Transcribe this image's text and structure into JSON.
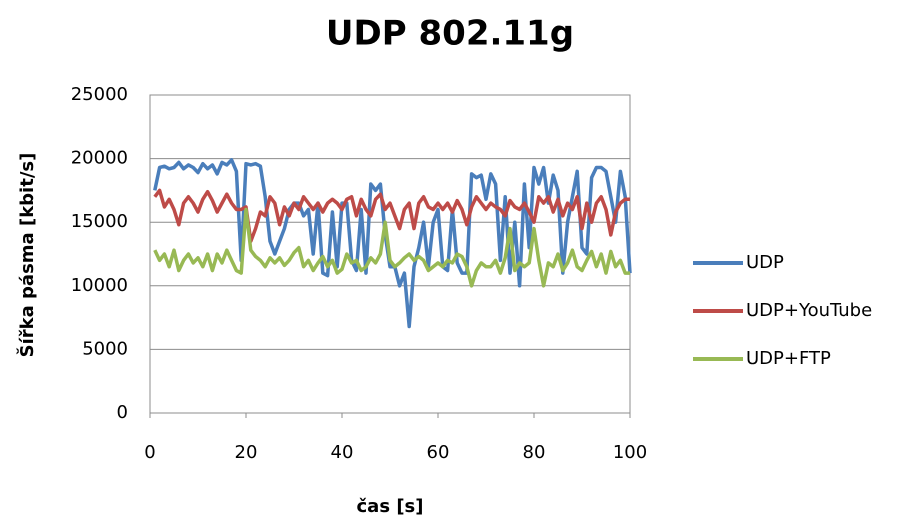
{
  "chart_data": {
    "type": "line",
    "title": "UDP 802.11g",
    "x_label": "čas [s]",
    "y_label": "Šířka pásma [kbit/s]",
    "x": [
      1,
      2,
      3,
      4,
      5,
      6,
      7,
      8,
      9,
      10,
      11,
      12,
      13,
      14,
      15,
      16,
      17,
      18,
      19,
      20,
      21,
      22,
      23,
      24,
      25,
      26,
      27,
      28,
      29,
      30,
      31,
      32,
      33,
      34,
      35,
      36,
      37,
      38,
      39,
      40,
      41,
      42,
      43,
      44,
      45,
      46,
      47,
      48,
      49,
      50,
      51,
      52,
      53,
      54,
      55,
      56,
      57,
      58,
      59,
      60,
      61,
      62,
      63,
      64,
      65,
      66,
      67,
      68,
      69,
      70,
      71,
      72,
      73,
      74,
      75,
      76,
      77,
      78,
      79,
      80,
      81,
      82,
      83,
      84,
      85,
      86,
      87,
      88,
      89,
      90,
      91,
      92,
      93,
      94,
      95,
      96,
      97,
      98,
      99,
      100
    ],
    "series": [
      {
        "name": "UDP",
        "color": "#4a7ebb",
        "values": [
          17500,
          19300,
          19400,
          19200,
          19300,
          19700,
          19200,
          19500,
          19300,
          18900,
          19600,
          19200,
          19500,
          18800,
          19700,
          19500,
          19900,
          19000,
          12000,
          19600,
          19500,
          19600,
          19400,
          17000,
          13500,
          12500,
          13500,
          14500,
          16000,
          16500,
          16500,
          15500,
          16000,
          12500,
          16500,
          11000,
          10800,
          15800,
          11500,
          16500,
          16500,
          12000,
          11200,
          16000,
          11000,
          18000,
          17500,
          18000,
          14000,
          11500,
          11500,
          10000,
          11000,
          6800,
          11500,
          13000,
          15000,
          11500,
          15000,
          16000,
          11500,
          11200,
          16000,
          11800,
          11000,
          11000,
          18800,
          18500,
          18700,
          16800,
          18800,
          18000,
          12000,
          17000,
          11000,
          15000,
          10000,
          18000,
          13000,
          19300,
          18000,
          19300,
          16500,
          18700,
          17500,
          11000,
          15000,
          17000,
          19000,
          13000,
          12500,
          18500,
          19300,
          19300,
          19000,
          17000,
          15000,
          19000,
          17000,
          11000
        ]
      },
      {
        "name": "UDP+YouTube",
        "color": "#be4b48",
        "values": [
          17000,
          17500,
          16200,
          16800,
          16000,
          14800,
          16500,
          17000,
          16500,
          15800,
          16800,
          17400,
          16700,
          15800,
          16500,
          17200,
          16500,
          16000,
          16000,
          16200,
          13500,
          14500,
          15800,
          15500,
          17000,
          16500,
          14800,
          16200,
          15500,
          16500,
          16000,
          17000,
          16500,
          16000,
          16500,
          15800,
          16500,
          16800,
          16500,
          16000,
          16800,
          17000,
          15500,
          16800,
          16000,
          15500,
          16800,
          17200,
          16000,
          16500,
          15500,
          14500,
          16000,
          16500,
          14500,
          16500,
          17000,
          16200,
          16000,
          16500,
          16000,
          16500,
          15800,
          16700,
          16000,
          14800,
          16200,
          17000,
          16500,
          16000,
          16500,
          16200,
          16000,
          15500,
          16700,
          16200,
          16000,
          16500,
          15800,
          15000,
          17000,
          16500,
          17000,
          15800,
          16800,
          15500,
          16500,
          16000,
          17000,
          14500,
          16500,
          15000,
          16500,
          17000,
          16000,
          14000,
          15800,
          16500,
          16800,
          16800
        ]
      },
      {
        "name": "UDP+FTP",
        "color": "#98b954",
        "values": [
          12800,
          12000,
          12500,
          11500,
          12800,
          11200,
          12000,
          12500,
          11800,
          12200,
          11500,
          12500,
          11200,
          12500,
          11800,
          12800,
          12000,
          11200,
          11000,
          16000,
          12800,
          12300,
          12000,
          11500,
          12200,
          11800,
          12200,
          11600,
          12000,
          12600,
          13000,
          11500,
          12000,
          11200,
          11800,
          12300,
          11500,
          12000,
          11000,
          11300,
          12500,
          11800,
          12000,
          11200,
          11500,
          12200,
          11800,
          12500,
          15000,
          12000,
          11500,
          11800,
          12200,
          12500,
          12000,
          12300,
          12000,
          11200,
          11500,
          11800,
          11500,
          12000,
          11800,
          12500,
          12300,
          11500,
          10000,
          11200,
          11800,
          11500,
          11500,
          12000,
          11000,
          12200,
          14500,
          11200,
          11800,
          11500,
          11800,
          14500,
          12000,
          10000,
          11800,
          11500,
          12500,
          11200,
          11800,
          12800,
          11500,
          11200,
          12000,
          12700,
          11500,
          12500,
          11000,
          12700,
          11500,
          12000,
          11000,
          11000
        ]
      }
    ],
    "xlim": [
      0,
      100
    ],
    "xticks": [
      0,
      20,
      40,
      60,
      80,
      100
    ],
    "ylim": [
      0,
      25000
    ],
    "yticks": [
      0,
      5000,
      10000,
      15000,
      20000,
      25000
    ],
    "grid": true,
    "legend": "right"
  }
}
